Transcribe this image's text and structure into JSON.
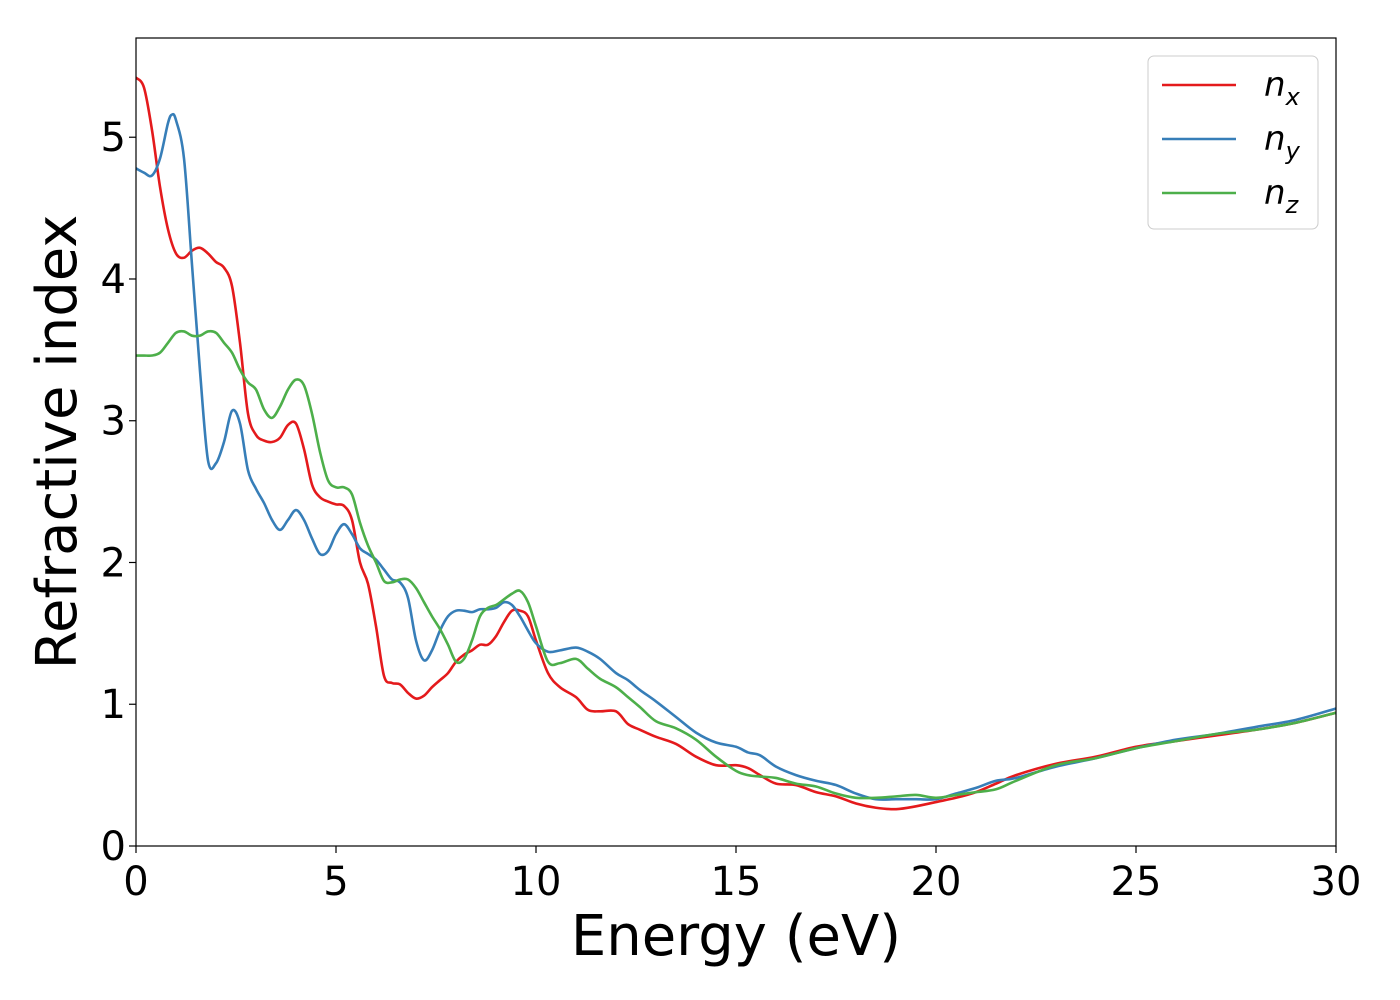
{
  "chart_data": {
    "type": "line",
    "xlabel": "Energy (eV)",
    "ylabel": "Refractive index",
    "xlim": [
      0,
      30
    ],
    "ylim": [
      0,
      5.7
    ],
    "xticks": [
      0,
      5,
      10,
      15,
      20,
      25,
      30
    ],
    "yticks": [
      0,
      1,
      2,
      3,
      4,
      5
    ],
    "grid": false,
    "legend_position": "top-right",
    "series": [
      {
        "name": "n",
        "subscript": "x",
        "color": "#e41a1c",
        "x": [
          0,
          0.2,
          0.4,
          0.6,
          0.8,
          1.0,
          1.2,
          1.4,
          1.6,
          1.8,
          2.0,
          2.2,
          2.4,
          2.6,
          2.8,
          3.0,
          3.2,
          3.4,
          3.6,
          3.8,
          4.0,
          4.2,
          4.4,
          4.6,
          4.8,
          5.0,
          5.2,
          5.4,
          5.6,
          5.8,
          6.0,
          6.2,
          6.4,
          6.6,
          6.8,
          7.0,
          7.2,
          7.4,
          7.6,
          7.8,
          8.0,
          8.2,
          8.4,
          8.6,
          8.8,
          9.0,
          9.2,
          9.4,
          9.6,
          9.8,
          10.0,
          10.3,
          10.6,
          11.0,
          11.3,
          11.6,
          12.0,
          12.3,
          12.6,
          13.0,
          13.5,
          14.0,
          14.5,
          15.0,
          15.3,
          15.6,
          16.0,
          16.5,
          17.0,
          17.5,
          18.0,
          18.5,
          19.0,
          19.5,
          20.0,
          20.5,
          21.0,
          21.5,
          22.0,
          23.0,
          24.0,
          25.0,
          26.0,
          27.0,
          28.0,
          29.0,
          30.0
        ],
        "values": [
          5.42,
          5.35,
          5.05,
          4.65,
          4.35,
          4.18,
          4.15,
          4.2,
          4.22,
          4.18,
          4.12,
          4.08,
          3.95,
          3.55,
          3.05,
          2.9,
          2.86,
          2.85,
          2.88,
          2.97,
          2.98,
          2.8,
          2.55,
          2.46,
          2.43,
          2.41,
          2.4,
          2.3,
          2.0,
          1.85,
          1.55,
          1.2,
          1.15,
          1.14,
          1.08,
          1.04,
          1.06,
          1.12,
          1.17,
          1.22,
          1.3,
          1.35,
          1.38,
          1.42,
          1.42,
          1.48,
          1.58,
          1.66,
          1.66,
          1.62,
          1.45,
          1.22,
          1.12,
          1.05,
          0.96,
          0.95,
          0.95,
          0.86,
          0.82,
          0.77,
          0.72,
          0.63,
          0.57,
          0.57,
          0.55,
          0.5,
          0.44,
          0.43,
          0.38,
          0.35,
          0.3,
          0.27,
          0.26,
          0.28,
          0.31,
          0.34,
          0.38,
          0.44,
          0.5,
          0.58,
          0.63,
          0.7,
          0.74,
          0.78,
          0.82,
          0.87,
          0.94
        ]
      },
      {
        "name": "n",
        "subscript": "y",
        "color": "#377eb8",
        "x": [
          0,
          0.2,
          0.4,
          0.6,
          0.8,
          0.9,
          1.0,
          1.2,
          1.4,
          1.6,
          1.8,
          2.0,
          2.2,
          2.4,
          2.6,
          2.8,
          3.0,
          3.2,
          3.4,
          3.6,
          3.8,
          4.0,
          4.2,
          4.4,
          4.6,
          4.8,
          5.0,
          5.2,
          5.4,
          5.6,
          5.8,
          6.0,
          6.2,
          6.4,
          6.6,
          6.8,
          7.0,
          7.2,
          7.4,
          7.6,
          7.8,
          8.0,
          8.2,
          8.4,
          8.6,
          8.8,
          9.0,
          9.2,
          9.4,
          9.6,
          9.8,
          10.0,
          10.3,
          10.6,
          11.0,
          11.3,
          11.6,
          12.0,
          12.3,
          12.6,
          13.0,
          13.5,
          14.0,
          14.5,
          15.0,
          15.3,
          15.6,
          16.0,
          16.5,
          17.0,
          17.5,
          18.0,
          18.5,
          19.0,
          19.5,
          20.0,
          20.5,
          21.0,
          21.5,
          22.0,
          23.0,
          24.0,
          25.0,
          26.0,
          27.0,
          28.0,
          29.0,
          30.0
        ],
        "values": [
          4.78,
          4.75,
          4.73,
          4.85,
          5.1,
          5.16,
          5.12,
          4.85,
          4.1,
          3.35,
          2.72,
          2.7,
          2.85,
          3.07,
          2.98,
          2.65,
          2.52,
          2.42,
          2.3,
          2.23,
          2.3,
          2.37,
          2.3,
          2.17,
          2.06,
          2.08,
          2.2,
          2.27,
          2.2,
          2.1,
          2.06,
          2.02,
          1.95,
          1.88,
          1.86,
          1.75,
          1.45,
          1.31,
          1.38,
          1.52,
          1.62,
          1.66,
          1.66,
          1.65,
          1.67,
          1.67,
          1.68,
          1.72,
          1.7,
          1.62,
          1.52,
          1.43,
          1.37,
          1.38,
          1.4,
          1.37,
          1.32,
          1.22,
          1.17,
          1.1,
          1.02,
          0.91,
          0.8,
          0.73,
          0.7,
          0.66,
          0.64,
          0.56,
          0.5,
          0.46,
          0.43,
          0.37,
          0.33,
          0.33,
          0.33,
          0.33,
          0.37,
          0.41,
          0.46,
          0.48,
          0.56,
          0.62,
          0.69,
          0.75,
          0.79,
          0.84,
          0.89,
          0.97
        ]
      },
      {
        "name": "n",
        "subscript": "z",
        "color": "#4daf4a",
        "x": [
          0,
          0.2,
          0.4,
          0.6,
          0.8,
          1.0,
          1.2,
          1.4,
          1.6,
          1.8,
          2.0,
          2.2,
          2.4,
          2.6,
          2.8,
          3.0,
          3.2,
          3.4,
          3.6,
          3.8,
          4.0,
          4.2,
          4.4,
          4.6,
          4.8,
          5.0,
          5.2,
          5.4,
          5.6,
          5.8,
          6.0,
          6.2,
          6.4,
          6.6,
          6.8,
          7.0,
          7.2,
          7.4,
          7.6,
          7.8,
          8.0,
          8.2,
          8.4,
          8.6,
          8.8,
          9.0,
          9.2,
          9.4,
          9.6,
          9.8,
          10.0,
          10.3,
          10.6,
          11.0,
          11.3,
          11.6,
          12.0,
          12.3,
          12.6,
          13.0,
          13.5,
          14.0,
          14.5,
          15.0,
          15.3,
          15.6,
          16.0,
          16.5,
          17.0,
          17.5,
          18.0,
          18.5,
          19.0,
          19.5,
          20.0,
          20.5,
          21.0,
          21.5,
          22.0,
          23.0,
          24.0,
          25.0,
          26.0,
          27.0,
          28.0,
          29.0,
          30.0
        ],
        "values": [
          3.46,
          3.46,
          3.46,
          3.48,
          3.55,
          3.62,
          3.63,
          3.6,
          3.6,
          3.63,
          3.62,
          3.55,
          3.48,
          3.36,
          3.27,
          3.22,
          3.08,
          3.02,
          3.1,
          3.22,
          3.29,
          3.25,
          3.05,
          2.78,
          2.58,
          2.53,
          2.53,
          2.48,
          2.28,
          2.12,
          2.0,
          1.87,
          1.86,
          1.88,
          1.88,
          1.82,
          1.72,
          1.62,
          1.53,
          1.42,
          1.3,
          1.32,
          1.45,
          1.62,
          1.68,
          1.7,
          1.74,
          1.78,
          1.8,
          1.72,
          1.55,
          1.3,
          1.29,
          1.32,
          1.25,
          1.18,
          1.12,
          1.05,
          0.98,
          0.88,
          0.83,
          0.75,
          0.63,
          0.53,
          0.5,
          0.49,
          0.48,
          0.44,
          0.42,
          0.37,
          0.34,
          0.34,
          0.35,
          0.36,
          0.34,
          0.36,
          0.38,
          0.4,
          0.46,
          0.57,
          0.62,
          0.69,
          0.74,
          0.79,
          0.82,
          0.87,
          0.94
        ]
      }
    ]
  }
}
